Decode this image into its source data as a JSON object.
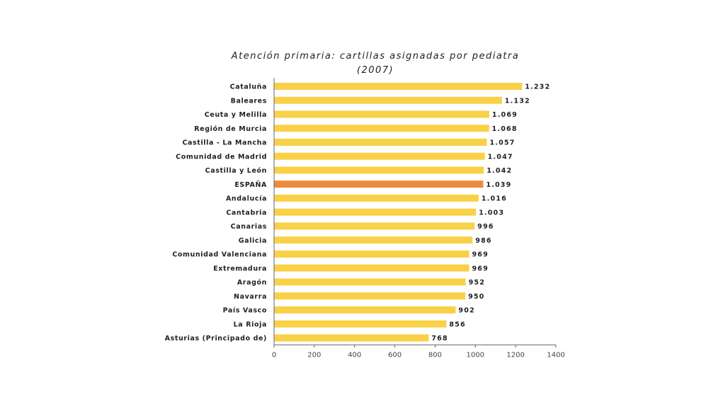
{
  "colors": {
    "bar": "#F9D149",
    "highlight": "#EE8A3C",
    "axis": "#666666",
    "background": "#ffffff"
  },
  "chart_data": {
    "type": "bar",
    "orientation": "horizontal",
    "title": "Atención primaria: cartillas asignadas por pediatra",
    "subtitle": "(2007)",
    "categories": [
      "Cataluña",
      "Baleares",
      "Ceuta y Melilla",
      "Región de Murcia",
      "Castilla - La Mancha",
      "Comunidad de Madrid",
      "Castilla y León",
      "ESPAÑA",
      "Andalucía",
      "Cantabria",
      "Canarias",
      "Galicia",
      "Comunidad Valenciana",
      "Extremadura",
      "Aragón",
      "Navarra",
      "País Vasco",
      "La Rioja",
      "Asturias (Principado de)"
    ],
    "values": [
      1232,
      1132,
      1069,
      1068,
      1057,
      1047,
      1042,
      1039,
      1016,
      1003,
      996,
      986,
      969,
      969,
      952,
      950,
      902,
      856,
      768
    ],
    "data_labels": [
      "1.232",
      "1.132",
      "1.069",
      "1.068",
      "1.057",
      "1.047",
      "1.042",
      "1.039",
      "1.016",
      "1.003",
      "996",
      "986",
      "969",
      "969",
      "952",
      "950",
      "902",
      "856",
      "768"
    ],
    "highlight_category": "ESPAÑA",
    "xlim": [
      0,
      1400
    ],
    "xticks": [
      "0",
      "200",
      "400",
      "600",
      "800",
      "1000",
      "1200",
      "1400"
    ],
    "grid": false,
    "legend": "none",
    "xlabel": "",
    "ylabel": ""
  }
}
